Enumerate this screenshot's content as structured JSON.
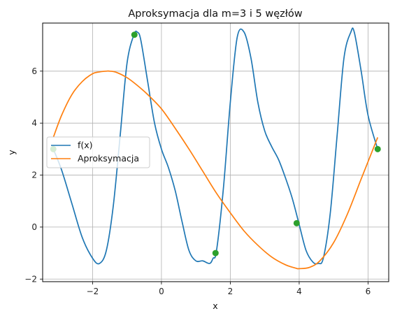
{
  "chart_data": {
    "type": "line",
    "title": "Aproksymacja dla m=3 i 5 węzłów",
    "xlabel": "x",
    "ylabel": "y",
    "xlim": [
      -3.45,
      6.6
    ],
    "ylim": [
      -2.1,
      7.85
    ],
    "xticks": [
      -2,
      0,
      2,
      4,
      6
    ],
    "yticks": [
      -2,
      0,
      2,
      4,
      6
    ],
    "grid": true,
    "legend": "center-left",
    "colors": {
      "f": "#1f77b4",
      "approx": "#ff7f0e",
      "nodes": "#2ca02c",
      "grid": "#b0b0b0"
    },
    "series": [
      {
        "name": "f(x)",
        "color": "#1f77b4",
        "x": [
          -3.14,
          -2.9,
          -2.6,
          -2.3,
          -2.0,
          -1.8,
          -1.6,
          -1.4,
          -1.2,
          -1.0,
          -0.8,
          -0.7,
          -0.6,
          -0.4,
          -0.2,
          0.0,
          0.2,
          0.4,
          0.6,
          0.8,
          1.0,
          1.2,
          1.4,
          1.5,
          1.6,
          1.8,
          2.0,
          2.2,
          2.4,
          2.6,
          2.8,
          3.0,
          3.2,
          3.4,
          3.6,
          3.8,
          4.0,
          4.2,
          4.4,
          4.55,
          4.7,
          4.9,
          5.1,
          5.3,
          5.5,
          5.6,
          5.8,
          6.0,
          6.28
        ],
        "values": [
          3.0,
          2.2,
          0.9,
          -0.4,
          -1.2,
          -1.4,
          -0.9,
          0.8,
          3.5,
          6.3,
          7.4,
          7.5,
          7.2,
          5.6,
          4.0,
          3.0,
          2.3,
          1.4,
          0.2,
          -0.9,
          -1.3,
          -1.3,
          -1.4,
          -1.2,
          -0.9,
          1.5,
          4.8,
          7.3,
          7.5,
          6.5,
          4.8,
          3.7,
          3.1,
          2.6,
          1.9,
          1.1,
          0.1,
          -0.9,
          -1.35,
          -1.4,
          -1.2,
          0.5,
          3.5,
          6.5,
          7.5,
          7.5,
          6.0,
          4.3,
          3.0
        ]
      },
      {
        "name": "Aproksymacja",
        "color": "#ff7f0e",
        "x": [
          -3.14,
          -2.9,
          -2.6,
          -2.3,
          -2.0,
          -1.8,
          -1.6,
          -1.5,
          -1.3,
          -1.0,
          -0.7,
          -0.4,
          0.0,
          0.4,
          0.8,
          1.2,
          1.6,
          2.0,
          2.4,
          2.8,
          3.2,
          3.6,
          3.9,
          4.0,
          4.3,
          4.6,
          5.0,
          5.4,
          5.8,
          6.1,
          6.28
        ],
        "values": [
          3.45,
          4.3,
          5.1,
          5.6,
          5.9,
          5.97,
          6.0,
          6.0,
          5.95,
          5.75,
          5.45,
          5.1,
          4.55,
          3.8,
          3.0,
          2.15,
          1.3,
          0.55,
          -0.15,
          -0.7,
          -1.15,
          -1.45,
          -1.58,
          -1.6,
          -1.55,
          -1.3,
          -0.6,
          0.5,
          1.85,
          2.85,
          3.45
        ]
      }
    ],
    "nodes": {
      "name": "węzły",
      "color": "#2ca02c",
      "x": [
        -3.14,
        -0.785,
        1.571,
        3.927,
        6.28
      ],
      "values": [
        3.0,
        7.4,
        -1.0,
        0.15,
        3.0
      ]
    }
  }
}
